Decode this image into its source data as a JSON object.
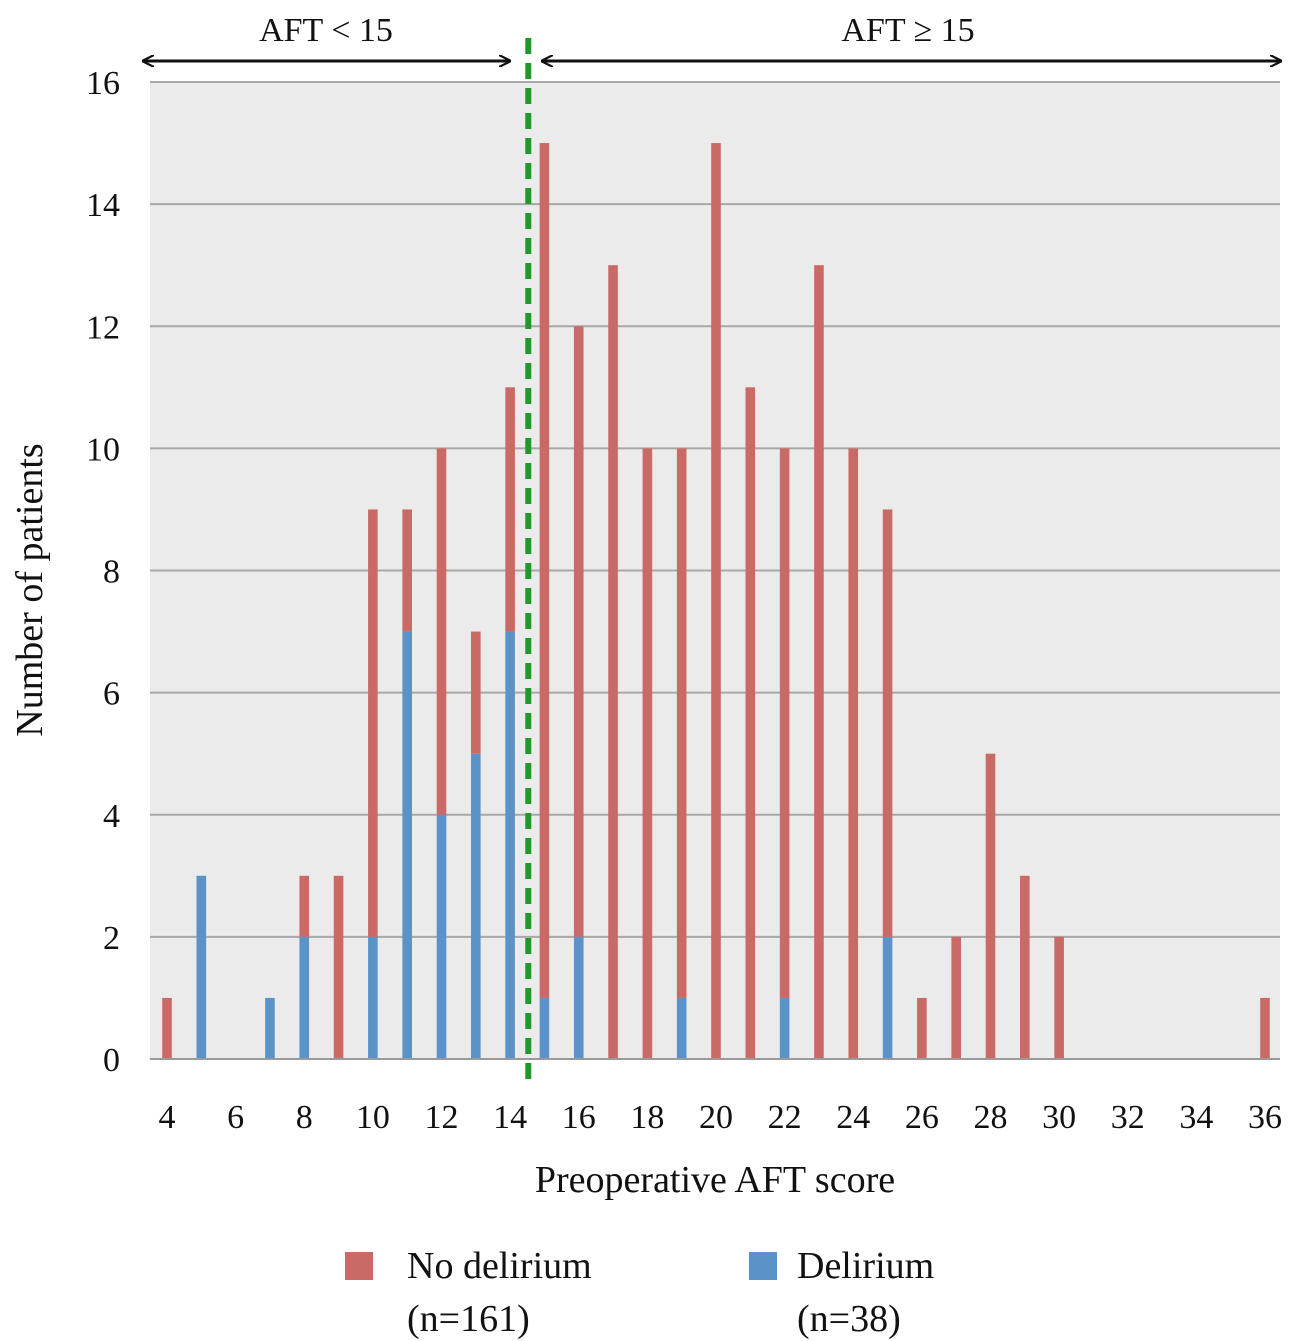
{
  "chart_data": {
    "type": "bar",
    "stacked": true,
    "title": "",
    "xlabel": "Preoperative AFT score",
    "ylabel": "Number of patients",
    "xlim": [
      4,
      36
    ],
    "ylim": [
      0,
      16
    ],
    "x_ticks": [
      "4",
      "6",
      "8",
      "10",
      "12",
      "14",
      "16",
      "18",
      "20",
      "22",
      "24",
      "26",
      "28",
      "30",
      "32",
      "34",
      "36"
    ],
    "y_ticks": [
      "0",
      "2",
      "4",
      "6",
      "8",
      "10",
      "12",
      "14",
      "16"
    ],
    "grid": true,
    "legend_position": "bottom",
    "x": [
      4,
      5,
      6,
      7,
      8,
      9,
      10,
      11,
      12,
      13,
      14,
      15,
      16,
      17,
      18,
      19,
      20,
      21,
      22,
      23,
      24,
      25,
      26,
      27,
      28,
      29,
      30,
      31,
      32,
      33,
      34,
      35,
      36
    ],
    "series": [
      {
        "name": "Delirium",
        "sublabel": "(n=38)",
        "color": "#5b93c9",
        "values": [
          0,
          3,
          0,
          1,
          2,
          0,
          2,
          7,
          4,
          5,
          7,
          1,
          2,
          0,
          0,
          1,
          0,
          0,
          1,
          0,
          0,
          2,
          0,
          0,
          0,
          0,
          0,
          0,
          0,
          0,
          0,
          0,
          0
        ]
      },
      {
        "name": "No delirium",
        "sublabel": "(n=161)",
        "color": "#c96a66",
        "values": [
          1,
          0,
          0,
          0,
          1,
          3,
          7,
          2,
          6,
          2,
          4,
          14,
          10,
          13,
          10,
          9,
          15,
          11,
          9,
          13,
          10,
          7,
          1,
          2,
          5,
          3,
          2,
          0,
          0,
          0,
          0,
          0,
          1
        ]
      }
    ],
    "legend_order": [
      1,
      0
    ],
    "cutoff": {
      "x": 14.5,
      "color": "#1f9a2a"
    },
    "regions": [
      {
        "label": "AFT < 15",
        "from": 4,
        "to": 14.5
      },
      {
        "label": "AFT ≥ 15",
        "from": 14.5,
        "to": 36
      }
    ]
  }
}
